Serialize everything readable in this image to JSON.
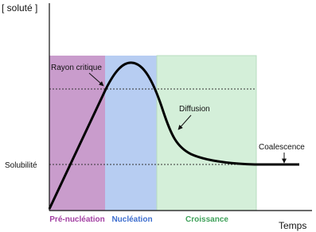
{
  "axes": {
    "y_label": "[ soluté ]",
    "x_label": "Temps",
    "solubility_label": "Solubilité"
  },
  "regions": [
    {
      "label": "Pré-nucléation"
    },
    {
      "label": "Nucléation"
    },
    {
      "label": "Croissance"
    }
  ],
  "annotations": {
    "critical_radius": "Rayon critique",
    "diffusion": "Diffusion",
    "coalescence": "Coalescence"
  }
}
